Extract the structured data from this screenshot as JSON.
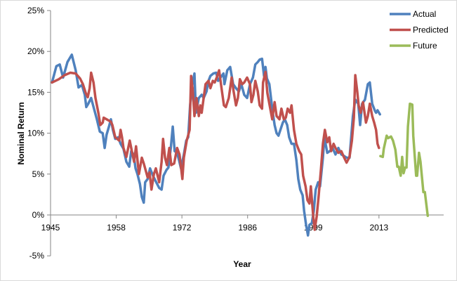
{
  "chart_data": {
    "type": "line",
    "title": "",
    "xlabel": "Year",
    "ylabel": "Nominal Return",
    "xlim": [
      1945,
      2025
    ],
    "ylim": [
      -5,
      25
    ],
    "grid": false,
    "legend_position": "top-right",
    "x_ticks": {
      "values": [
        1945,
        1958.6,
        1972.2,
        1985.8,
        1999.4,
        2013
      ],
      "labels": [
        "1945",
        "1958",
        "1972",
        "1986",
        "1999",
        "2013"
      ]
    },
    "y_ticks": {
      "values": [
        -5,
        0,
        5,
        10,
        15,
        20,
        25
      ],
      "labels": [
        "-5%",
        "0%",
        "5%",
        "10%",
        "15%",
        "20%",
        "25%"
      ]
    },
    "series": [
      {
        "name": "Actual",
        "color": "#4f81bd",
        "x": [
          1945.3,
          1946.2,
          1946.9,
          1947.6,
          1948.5,
          1949.4,
          1950.2,
          1950.8,
          1951.5,
          1952.1,
          1952.4,
          1952.8,
          1953.4,
          1954.0,
          1954.6,
          1955.2,
          1955.8,
          1956.2,
          1956.6,
          1957.1,
          1957.5,
          1957.9,
          1958.4,
          1959.0,
          1959.5,
          1960.1,
          1960.7,
          1961.3,
          1961.7,
          1962.2,
          1962.6,
          1963.0,
          1963.5,
          1963.9,
          1964.3,
          1964.6,
          1965.1,
          1965.6,
          1966.2,
          1966.8,
          1967.5,
          1968.0,
          1968.4,
          1969.0,
          1969.4,
          1969.9,
          1970.3,
          1970.7,
          1971.2,
          1971.6,
          1972.0,
          1972.6,
          1973.1,
          1973.5,
          1973.9,
          1974.4,
          1974.8,
          1975.1,
          1975.7,
          1976.3,
          1976.7,
          1977.3,
          1977.7,
          1978.1,
          1978.7,
          1979.3,
          1979.7,
          1980.2,
          1980.8,
          1981.0,
          1981.6,
          1982.2,
          1982.8,
          1983.4,
          1984.0,
          1984.5,
          1985.1,
          1985.7,
          1986.3,
          1986.9,
          1987.4,
          1987.9,
          1988.3,
          1988.8,
          1989.2,
          1989.5,
          1989.8,
          1990.3,
          1990.9,
          1991.4,
          1991.8,
          1992.2,
          1992.7,
          1993.1,
          1993.5,
          1994.0,
          1994.4,
          1994.9,
          1995.4,
          1995.9,
          1996.3,
          1996.7,
          1997.2,
          1997.5,
          1997.9,
          1998.3,
          1998.6,
          1999.1,
          1999.5,
          1999.9,
          2000.4,
          2000.8,
          2001.4,
          2001.7,
          2002.3,
          2002.8,
          2003.4,
          2004.0,
          2004.6,
          2005.2,
          2005.8,
          2006.3,
          2006.9,
          2007.2,
          2007.6,
          2008.1,
          2008.7,
          2009.1,
          2009.5,
          2010.1,
          2010.7,
          2011.1,
          2011.6,
          2012.2,
          2012.4,
          2012.7,
          2013.2
        ],
        "y": [
          16.2,
          18.2,
          18.4,
          16.8,
          18.7,
          19.6,
          17.7,
          15.6,
          15.9,
          14.7,
          13.2,
          13.6,
          14.3,
          13.0,
          11.7,
          10.2,
          10.0,
          8.2,
          9.8,
          10.8,
          11.7,
          10.4,
          9.3,
          9.5,
          8.7,
          8.1,
          6.5,
          5.9,
          7.8,
          7.4,
          5.7,
          5.0,
          3.8,
          2.2,
          1.5,
          4.0,
          4.4,
          5.7,
          4.8,
          4.1,
          3.3,
          3.1,
          4.8,
          5.5,
          5.8,
          8.2,
          10.8,
          7.8,
          7.6,
          6.7,
          5.7,
          7.4,
          9.1,
          9.5,
          13.4,
          16.2,
          17.3,
          12.5,
          14.3,
          14.7,
          14.3,
          15.1,
          16.4,
          17.0,
          17.3,
          17.4,
          16.4,
          16.8,
          17.3,
          16.0,
          17.7,
          18.1,
          16.0,
          15.5,
          15.1,
          16.0,
          14.7,
          14.3,
          16.0,
          16.8,
          18.4,
          18.7,
          19.0,
          19.1,
          17.0,
          18.1,
          16.7,
          16.0,
          13.0,
          11.0,
          10.0,
          9.7,
          10.6,
          11.3,
          11.7,
          11.0,
          9.5,
          8.7,
          8.7,
          6.7,
          4.4,
          3.1,
          2.4,
          0.5,
          -1.2,
          -2.5,
          -1.2,
          -1.0,
          0.5,
          3.1,
          4.0,
          3.5,
          7.0,
          9.5,
          7.6,
          7.8,
          8.2,
          7.4,
          8.2,
          7.4,
          7.2,
          7.0,
          7.0,
          9.1,
          12.1,
          14.1,
          13.6,
          11.0,
          13.6,
          14.1,
          16.0,
          16.2,
          13.6,
          12.7,
          12.5,
          12.8,
          12.3
        ]
      },
      {
        "name": "Predicted",
        "color": "#c0504d",
        "x": [
          1945.3,
          1946.7,
          1947.9,
          1949.1,
          1950.2,
          1951.1,
          1951.7,
          1952.3,
          1952.7,
          1953.1,
          1953.4,
          1953.9,
          1954.3,
          1954.9,
          1955.3,
          1955.8,
          1956.0,
          1956.6,
          1957.2,
          1957.5,
          1957.8,
          1958.4,
          1959.2,
          1959.5,
          1959.8,
          1960.1,
          1960.7,
          1961.4,
          1961.9,
          1962.3,
          1962.7,
          1963.3,
          1963.9,
          1964.3,
          1965.1,
          1965.5,
          1965.9,
          1966.4,
          1966.8,
          1967.5,
          1968.0,
          1968.3,
          1968.7,
          1969.1,
          1969.6,
          1970.0,
          1970.6,
          1971.2,
          1971.7,
          1972.3,
          1972.6,
          1973.2,
          1973.8,
          1974.1,
          1974.4,
          1974.8,
          1975.2,
          1975.7,
          1976.0,
          1976.3,
          1976.7,
          1977.1,
          1977.7,
          1978.1,
          1978.6,
          1979.0,
          1979.4,
          1979.9,
          1980.5,
          1980.9,
          1981.3,
          1981.9,
          1982.5,
          1982.9,
          1983.4,
          1983.8,
          1984.2,
          1984.7,
          1985.1,
          1985.7,
          1986.3,
          1986.6,
          1987.0,
          1987.4,
          1987.9,
          1988.3,
          1988.8,
          1989.0,
          1989.5,
          1989.9,
          1990.5,
          1990.9,
          1991.4,
          1991.8,
          1992.4,
          1992.8,
          1993.3,
          1993.7,
          1994.1,
          1994.6,
          1994.9,
          1995.4,
          1995.9,
          1996.5,
          1996.9,
          1997.3,
          1997.8,
          1998.2,
          1998.6,
          1998.9,
          1999.4,
          1999.7,
          2000.1,
          2000.5,
          2001.0,
          2001.4,
          2001.8,
          2002.3,
          2002.7,
          2003.1,
          2003.6,
          2004.0,
          2004.6,
          2005.2,
          2005.8,
          2006.3,
          2006.9,
          2007.4,
          2007.8,
          2008.1,
          2008.5,
          2008.8,
          2009.2,
          2009.7,
          2010.3,
          2010.7,
          2011.1,
          2011.6,
          2012.0,
          2012.4,
          2012.7,
          2013.0
        ],
        "y": [
          16.2,
          16.6,
          17.1,
          17.4,
          17.3,
          16.7,
          16.0,
          14.9,
          14.4,
          15.5,
          17.4,
          16.2,
          14.3,
          12.5,
          11.0,
          11.3,
          11.9,
          11.7,
          11.5,
          11.4,
          11.0,
          9.5,
          9.1,
          10.4,
          9.5,
          8.2,
          7.1,
          9.1,
          7.6,
          6.5,
          8.4,
          5.0,
          7.0,
          6.3,
          4.6,
          5.2,
          3.1,
          5.0,
          5.7,
          4.0,
          6.5,
          9.3,
          7.0,
          6.1,
          8.2,
          6.1,
          6.3,
          8.2,
          7.4,
          4.4,
          7.0,
          9.1,
          10.4,
          17.0,
          15.5,
          12.1,
          14.3,
          12.1,
          13.4,
          12.5,
          14.3,
          16.0,
          16.4,
          15.5,
          16.4,
          16.2,
          16.8,
          17.7,
          15.1,
          13.4,
          13.2,
          14.3,
          16.8,
          15.1,
          13.4,
          14.3,
          16.6,
          16.0,
          16.2,
          16.8,
          16.0,
          13.8,
          14.7,
          16.4,
          15.1,
          13.4,
          13.0,
          16.2,
          17.5,
          14.9,
          13.0,
          11.7,
          13.8,
          12.1,
          11.7,
          13.0,
          11.7,
          11.9,
          13.0,
          12.5,
          13.4,
          10.4,
          8.7,
          7.8,
          7.4,
          4.8,
          3.5,
          1.8,
          1.4,
          3.5,
          -0.3,
          -1.8,
          -0.2,
          2.2,
          5.7,
          8.7,
          10.4,
          8.9,
          9.5,
          7.8,
          8.7,
          8.2,
          7.6,
          7.8,
          7.0,
          6.4,
          7.1,
          9.1,
          11.9,
          17.1,
          15.1,
          13.4,
          12.5,
          13.8,
          11.3,
          12.1,
          13.6,
          12.1,
          11.3,
          10.4,
          8.7,
          8.2
        ]
      },
      {
        "name": "Future",
        "color": "#9bbb59",
        "x": [
          2013.3,
          2013.8,
          2014.0,
          2014.6,
          2014.9,
          2015.5,
          2015.9,
          2016.4,
          2016.8,
          2017.1,
          2017.5,
          2017.8,
          2018.1,
          2018.4,
          2018.7,
          2019.0,
          2019.4,
          2019.9,
          2020.1,
          2020.7,
          2020.9,
          2021.3,
          2021.6,
          2022.2,
          2022.5,
          2023.1
        ],
        "y": [
          7.2,
          7.1,
          8.1,
          9.7,
          9.4,
          9.6,
          9.1,
          8.0,
          5.9,
          5.9,
          4.8,
          7.1,
          5.1,
          5.8,
          5.8,
          10.8,
          13.6,
          13.5,
          9.7,
          4.8,
          4.8,
          7.6,
          6.5,
          2.8,
          2.8,
          -0.1
        ]
      }
    ]
  }
}
